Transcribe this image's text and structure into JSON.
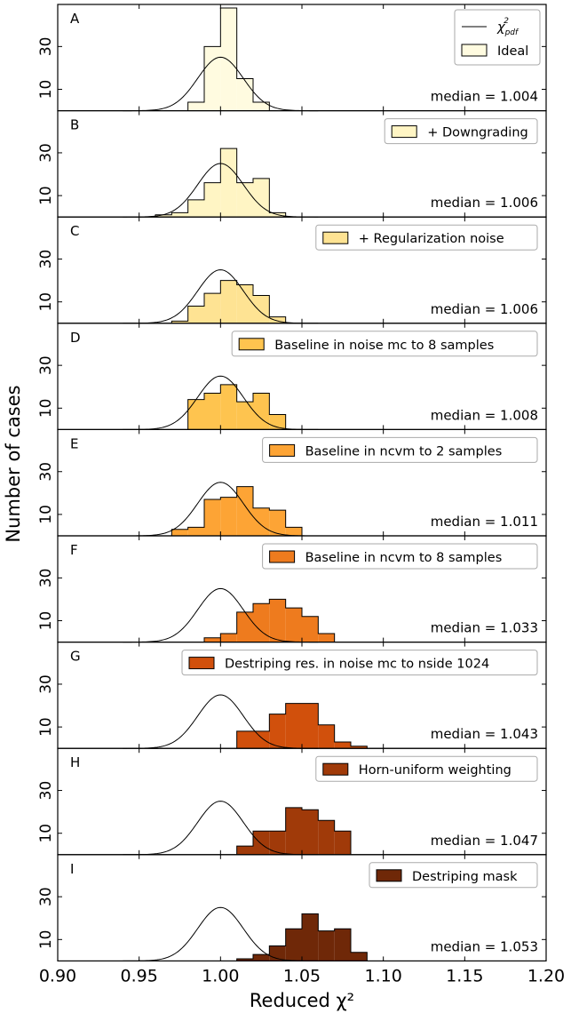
{
  "chart_data": {
    "type": "histogram",
    "xlabel": "Reduced χ²",
    "ylabel": "Number of cases",
    "xlim": [
      0.9,
      1.2
    ],
    "ylim": [
      0,
      48
    ],
    "x_ticks": [
      "0.90",
      "0.95",
      "1.00",
      "1.05",
      "1.10",
      "1.15",
      "1.20"
    ],
    "y_ticks": [
      "10",
      "30"
    ],
    "legend_curve_label": "χ²pdf",
    "legend_curve_label_main": "χ",
    "legend_curve_label_sup": "2",
    "legend_curve_label_sub": "pdf",
    "bin_width": 0.01,
    "curve": {
      "mean": 1.0,
      "sigma": 0.014,
      "peak": 25
    },
    "panels": [
      {
        "letter": "A",
        "label": "Ideal",
        "median_text": "median = 1.004",
        "fill": "#FFFBE0",
        "filled": false,
        "bins": [
          {
            "x0": 0.98,
            "y": 4
          },
          {
            "x0": 0.99,
            "y": 30
          },
          {
            "x0": 1.0,
            "y": 48
          },
          {
            "x0": 1.01,
            "y": 15
          },
          {
            "x0": 1.02,
            "y": 4
          }
        ]
      },
      {
        "letter": "B",
        "label": "+ Downgrading",
        "median_text": "median = 1.006",
        "fill": "#FFF5C4",
        "filled": true,
        "bins": [
          {
            "x0": 0.96,
            "y": 1
          },
          {
            "x0": 0.97,
            "y": 2
          },
          {
            "x0": 0.98,
            "y": 8
          },
          {
            "x0": 0.99,
            "y": 16
          },
          {
            "x0": 1.0,
            "y": 32
          },
          {
            "x0": 1.01,
            "y": 16
          },
          {
            "x0": 1.02,
            "y": 18
          },
          {
            "x0": 1.03,
            "y": 2
          }
        ]
      },
      {
        "letter": "C",
        "label": "+ Regularization noise",
        "median_text": "median = 1.006",
        "fill": "#FEE393",
        "filled": true,
        "bins": [
          {
            "x0": 0.97,
            "y": 1
          },
          {
            "x0": 0.98,
            "y": 8
          },
          {
            "x0": 0.99,
            "y": 14
          },
          {
            "x0": 1.0,
            "y": 20
          },
          {
            "x0": 1.01,
            "y": 18
          },
          {
            "x0": 1.02,
            "y": 13
          },
          {
            "x0": 1.03,
            "y": 3
          }
        ]
      },
      {
        "letter": "D",
        "label": "Baseline in noise mc to 8 samples",
        "median_text": "median = 1.008",
        "fill": "#FEC44F",
        "filled": true,
        "bins": [
          {
            "x0": 0.98,
            "y": 14
          },
          {
            "x0": 0.99,
            "y": 17
          },
          {
            "x0": 1.0,
            "y": 21
          },
          {
            "x0": 1.01,
            "y": 13
          },
          {
            "x0": 1.02,
            "y": 17
          },
          {
            "x0": 1.03,
            "y": 7
          }
        ]
      },
      {
        "letter": "E",
        "label": "Baseline in ncvm to 2 samples",
        "median_text": "median = 1.011",
        "fill": "#FDA435",
        "filled": true,
        "bins": [
          {
            "x0": 0.97,
            "y": 3
          },
          {
            "x0": 0.98,
            "y": 4
          },
          {
            "x0": 0.99,
            "y": 17
          },
          {
            "x0": 1.0,
            "y": 18
          },
          {
            "x0": 1.01,
            "y": 23
          },
          {
            "x0": 1.02,
            "y": 13
          },
          {
            "x0": 1.03,
            "y": 12
          },
          {
            "x0": 1.04,
            "y": 4
          }
        ]
      },
      {
        "letter": "F",
        "label": "Baseline in ncvm to 8 samples",
        "median_text": "median = 1.033",
        "fill": "#EE7B1E",
        "filled": true,
        "bins": [
          {
            "x0": 0.99,
            "y": 2
          },
          {
            "x0": 1.0,
            "y": 4
          },
          {
            "x0": 1.01,
            "y": 14
          },
          {
            "x0": 1.02,
            "y": 18
          },
          {
            "x0": 1.03,
            "y": 20
          },
          {
            "x0": 1.04,
            "y": 16
          },
          {
            "x0": 1.05,
            "y": 12
          },
          {
            "x0": 1.06,
            "y": 4
          }
        ]
      },
      {
        "letter": "G",
        "label": "Destriping res. in noise mc to nside 1024",
        "median_text": "median = 1.043",
        "fill": "#D1500C",
        "filled": true,
        "bins": [
          {
            "x0": 1.01,
            "y": 8
          },
          {
            "x0": 1.02,
            "y": 8
          },
          {
            "x0": 1.03,
            "y": 16
          },
          {
            "x0": 1.04,
            "y": 21
          },
          {
            "x0": 1.05,
            "y": 21
          },
          {
            "x0": 1.06,
            "y": 11
          },
          {
            "x0": 1.07,
            "y": 3
          },
          {
            "x0": 1.08,
            "y": 1
          }
        ]
      },
      {
        "letter": "H",
        "label": "Horn-uniform weighting",
        "median_text": "median = 1.047",
        "fill": "#A03A09",
        "filled": true,
        "bins": [
          {
            "x0": 1.01,
            "y": 4
          },
          {
            "x0": 1.02,
            "y": 11
          },
          {
            "x0": 1.03,
            "y": 11
          },
          {
            "x0": 1.04,
            "y": 22
          },
          {
            "x0": 1.05,
            "y": 21
          },
          {
            "x0": 1.06,
            "y": 16
          },
          {
            "x0": 1.07,
            "y": 11
          }
        ]
      },
      {
        "letter": "I",
        "label": "Destriping mask",
        "median_text": "median = 1.053",
        "fill": "#6F2808",
        "filled": true,
        "bins": [
          {
            "x0": 1.01,
            "y": 1
          },
          {
            "x0": 1.02,
            "y": 3
          },
          {
            "x0": 1.03,
            "y": 7
          },
          {
            "x0": 1.04,
            "y": 15
          },
          {
            "x0": 1.05,
            "y": 22
          },
          {
            "x0": 1.06,
            "y": 14
          },
          {
            "x0": 1.07,
            "y": 15
          },
          {
            "x0": 1.08,
            "y": 4
          }
        ]
      }
    ]
  }
}
